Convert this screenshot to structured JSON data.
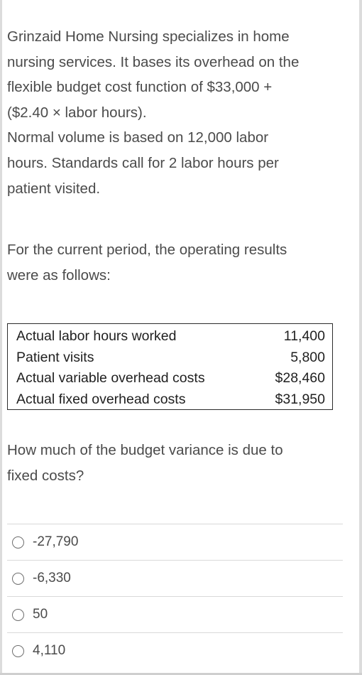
{
  "question": {
    "paragraph_lines": [
      "Grinzaid Home Nursing specializes in home",
      "nursing services. It bases its overhead on the",
      "flexible budget cost function of $33,000 +",
      "($2.40 × labor hours).",
      "Normal volume is based on 12,000 labor",
      "hours. Standards call for 2 labor hours per",
      "patient visited."
    ],
    "intro_lines": [
      "For the current period, the operating results",
      "were as follows:"
    ]
  },
  "results_table": {
    "rows": [
      {
        "label": "Actual labor hours worked",
        "value": "11,400"
      },
      {
        "label": "Patient visits",
        "value": "5,800"
      },
      {
        "label": "Actual variable overhead costs",
        "value": "$28,460"
      },
      {
        "label": "Actual fixed overhead costs",
        "value": "$31,950"
      }
    ]
  },
  "prompt_lines": [
    "How much of the budget variance is due to",
    "fixed costs?"
  ],
  "options": [
    {
      "label": "-27,790"
    },
    {
      "label": "-6,330"
    },
    {
      "label": "50"
    },
    {
      "label": "4,110"
    }
  ]
}
